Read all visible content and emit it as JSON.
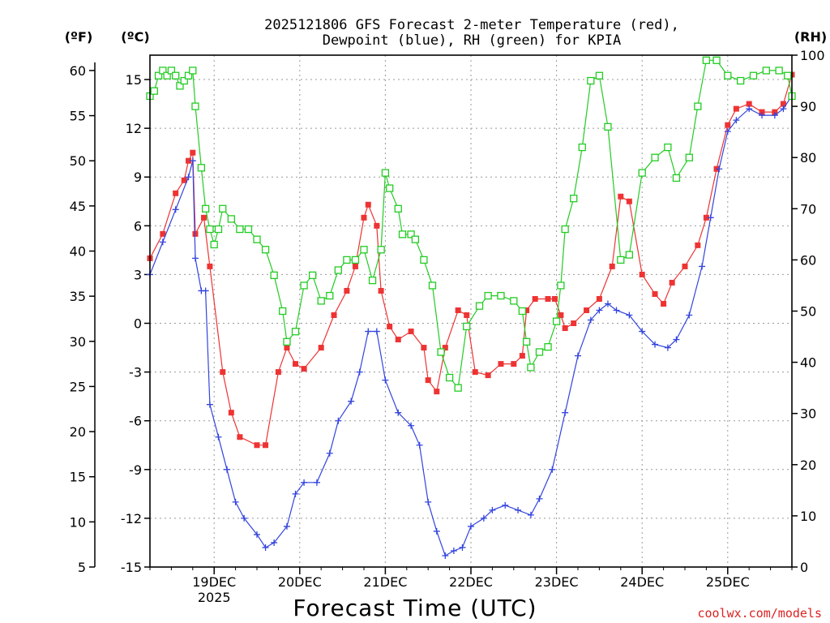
{
  "chart_data": {
    "type": "line",
    "title_line1": "2025121806 GFS Forecast 2-meter Temperature (red),",
    "title_line2": "Dewpoint (blue), RH (green) for KPIA",
    "xlabel": "Forecast Time (UTC)",
    "watermark": "coolwx.com/models",
    "unit_labels": {
      "fahrenheit": "(ºF)",
      "celsius": "(ºC)",
      "rh": "(RH)"
    },
    "x_range_days": [
      18.25,
      25.75
    ],
    "x_ticks": [
      {
        "day": 19,
        "label": "19DEC",
        "year": "2025"
      },
      {
        "day": 20,
        "label": "20DEC"
      },
      {
        "day": 21,
        "label": "21DEC"
      },
      {
        "day": 22,
        "label": "22DEC"
      },
      {
        "day": 23,
        "label": "23DEC"
      },
      {
        "day": 24,
        "label": "24DEC"
      },
      {
        "day": 25,
        "label": "25DEC"
      }
    ],
    "y_celsius": {
      "range": [
        -15,
        16.5
      ],
      "ticks": [
        "15",
        "12",
        "9",
        "6",
        "3",
        "0",
        "-3",
        "-6",
        "-9",
        "-12",
        "-15"
      ]
    },
    "y_fahrenheit": {
      "ticks": [
        "60",
        "55",
        "50",
        "45",
        "40",
        "35",
        "30",
        "25",
        "20",
        "15",
        "10",
        "5"
      ]
    },
    "y_rh": {
      "range": [
        0,
        100
      ],
      "ticks": [
        "100",
        "90",
        "80",
        "70",
        "60",
        "50",
        "40",
        "30",
        "20",
        "10",
        "0"
      ]
    },
    "series": [
      {
        "name": "Temperature",
        "units": "C",
        "color": "#ee3333",
        "marker": "square-filled",
        "points": [
          [
            18.25,
            4.0
          ],
          [
            18.4,
            5.5
          ],
          [
            18.55,
            8.0
          ],
          [
            18.65,
            8.8
          ],
          [
            18.7,
            10.0
          ],
          [
            18.75,
            10.5
          ],
          [
            18.78,
            5.5
          ],
          [
            18.88,
            6.5
          ],
          [
            18.95,
            3.5
          ],
          [
            19.1,
            -3
          ],
          [
            19.2,
            -5.5
          ],
          [
            19.3,
            -7.0
          ],
          [
            19.5,
            -7.5
          ],
          [
            19.6,
            -7.5
          ],
          [
            19.75,
            -3.0
          ],
          [
            19.85,
            -1.5
          ],
          [
            19.95,
            -2.5
          ],
          [
            20.05,
            -2.8
          ],
          [
            20.25,
            -1.5
          ],
          [
            20.4,
            0.5
          ],
          [
            20.55,
            2.0
          ],
          [
            20.65,
            3.5
          ],
          [
            20.75,
            6.5
          ],
          [
            20.8,
            7.3
          ],
          [
            20.9,
            6.0
          ],
          [
            20.95,
            2.0
          ],
          [
            21.05,
            -0.2
          ],
          [
            21.15,
            -1.0
          ],
          [
            21.3,
            -0.5
          ],
          [
            21.45,
            -1.5
          ],
          [
            21.5,
            -3.5
          ],
          [
            21.6,
            -4.2
          ],
          [
            21.7,
            -1.5
          ],
          [
            21.85,
            0.8
          ],
          [
            21.95,
            0.5
          ],
          [
            22.05,
            -3.0
          ],
          [
            22.2,
            -3.2
          ],
          [
            22.35,
            -2.5
          ],
          [
            22.5,
            -2.5
          ],
          [
            22.6,
            -2.0
          ],
          [
            22.65,
            0.8
          ],
          [
            22.75,
            1.5
          ],
          [
            22.9,
            1.5
          ],
          [
            22.98,
            1.5
          ],
          [
            23.05,
            0.5
          ],
          [
            23.1,
            -0.3
          ],
          [
            23.2,
            0.0
          ],
          [
            23.35,
            0.8
          ],
          [
            23.5,
            1.5
          ],
          [
            23.65,
            3.5
          ],
          [
            23.75,
            7.8
          ],
          [
            23.85,
            7.5
          ],
          [
            24.0,
            3.0
          ],
          [
            24.15,
            1.8
          ],
          [
            24.25,
            1.2
          ],
          [
            24.35,
            2.5
          ],
          [
            24.5,
            3.5
          ],
          [
            24.65,
            4.8
          ],
          [
            24.75,
            6.5
          ],
          [
            24.87,
            9.5
          ],
          [
            25.0,
            12.2
          ],
          [
            25.1,
            13.2
          ],
          [
            25.25,
            13.5
          ],
          [
            25.4,
            13.0
          ],
          [
            25.55,
            13.0
          ],
          [
            25.65,
            13.5
          ],
          [
            25.75,
            15.3
          ]
        ]
      },
      {
        "name": "Dewpoint",
        "units": "C",
        "color": "#3344dd",
        "marker": "plus",
        "points": [
          [
            18.25,
            3.0
          ],
          [
            18.4,
            5.0
          ],
          [
            18.55,
            7.0
          ],
          [
            18.7,
            9.0
          ],
          [
            18.75,
            10.0
          ],
          [
            18.78,
            4.0
          ],
          [
            18.85,
            2.0
          ],
          [
            18.9,
            2.0
          ],
          [
            18.95,
            -5.0
          ],
          [
            19.05,
            -7.0
          ],
          [
            19.15,
            -9.0
          ],
          [
            19.25,
            -11.0
          ],
          [
            19.35,
            -12.0
          ],
          [
            19.5,
            -13.0
          ],
          [
            19.6,
            -13.8
          ],
          [
            19.7,
            -13.5
          ],
          [
            19.85,
            -12.5
          ],
          [
            19.95,
            -10.5
          ],
          [
            20.05,
            -9.8
          ],
          [
            20.2,
            -9.8
          ],
          [
            20.35,
            -8.0
          ],
          [
            20.45,
            -6.0
          ],
          [
            20.6,
            -4.8
          ],
          [
            20.7,
            -3.0
          ],
          [
            20.8,
            -0.5
          ],
          [
            20.9,
            -0.5
          ],
          [
            21.0,
            -3.5
          ],
          [
            21.15,
            -5.5
          ],
          [
            21.3,
            -6.3
          ],
          [
            21.4,
            -7.5
          ],
          [
            21.5,
            -11.0
          ],
          [
            21.6,
            -12.8
          ],
          [
            21.7,
            -14.3
          ],
          [
            21.8,
            -14.0
          ],
          [
            21.9,
            -13.8
          ],
          [
            22.0,
            -12.5
          ],
          [
            22.15,
            -12.0
          ],
          [
            22.25,
            -11.5
          ],
          [
            22.4,
            -11.2
          ],
          [
            22.55,
            -11.5
          ],
          [
            22.7,
            -11.8
          ],
          [
            22.8,
            -10.8
          ],
          [
            22.95,
            -9.0
          ],
          [
            23.1,
            -5.5
          ],
          [
            23.25,
            -2.0
          ],
          [
            23.4,
            0.2
          ],
          [
            23.5,
            0.8
          ],
          [
            23.6,
            1.2
          ],
          [
            23.7,
            0.8
          ],
          [
            23.85,
            0.5
          ],
          [
            24.0,
            -0.5
          ],
          [
            24.15,
            -1.3
          ],
          [
            24.3,
            -1.5
          ],
          [
            24.4,
            -1.0
          ],
          [
            24.55,
            0.5
          ],
          [
            24.7,
            3.5
          ],
          [
            24.8,
            6.5
          ],
          [
            24.9,
            9.5
          ],
          [
            25.0,
            11.8
          ],
          [
            25.1,
            12.5
          ],
          [
            25.25,
            13.2
          ],
          [
            25.4,
            12.8
          ],
          [
            25.55,
            12.8
          ],
          [
            25.65,
            13.2
          ],
          [
            25.75,
            14.0
          ]
        ]
      },
      {
        "name": "Relative Humidity",
        "units": "%",
        "color": "#22cc22",
        "marker": "square-open",
        "points": [
          [
            18.25,
            92
          ],
          [
            18.3,
            93
          ],
          [
            18.35,
            96
          ],
          [
            18.4,
            97
          ],
          [
            18.45,
            96
          ],
          [
            18.5,
            97
          ],
          [
            18.55,
            96
          ],
          [
            18.6,
            94
          ],
          [
            18.65,
            95
          ],
          [
            18.7,
            96
          ],
          [
            18.75,
            97
          ],
          [
            18.78,
            90
          ],
          [
            18.85,
            78
          ],
          [
            18.9,
            70
          ],
          [
            18.95,
            66
          ],
          [
            19.0,
            63
          ],
          [
            19.05,
            66
          ],
          [
            19.1,
            70
          ],
          [
            19.2,
            68
          ],
          [
            19.3,
            66
          ],
          [
            19.4,
            66
          ],
          [
            19.5,
            64
          ],
          [
            19.6,
            62
          ],
          [
            19.7,
            57
          ],
          [
            19.8,
            50
          ],
          [
            19.85,
            44
          ],
          [
            19.95,
            46
          ],
          [
            20.05,
            55
          ],
          [
            20.15,
            57
          ],
          [
            20.25,
            52
          ],
          [
            20.35,
            53
          ],
          [
            20.45,
            58
          ],
          [
            20.55,
            60
          ],
          [
            20.65,
            60
          ],
          [
            20.75,
            62
          ],
          [
            20.85,
            56
          ],
          [
            20.95,
            62
          ],
          [
            21.0,
            77
          ],
          [
            21.05,
            74
          ],
          [
            21.15,
            70
          ],
          [
            21.2,
            65
          ],
          [
            21.3,
            65
          ],
          [
            21.35,
            64
          ],
          [
            21.45,
            60
          ],
          [
            21.55,
            55
          ],
          [
            21.65,
            42
          ],
          [
            21.75,
            37
          ],
          [
            21.85,
            35
          ],
          [
            21.95,
            47
          ],
          [
            22.1,
            51
          ],
          [
            22.2,
            53
          ],
          [
            22.35,
            53
          ],
          [
            22.5,
            52
          ],
          [
            22.6,
            50
          ],
          [
            22.65,
            44
          ],
          [
            22.7,
            39
          ],
          [
            22.8,
            42
          ],
          [
            22.9,
            43
          ],
          [
            23.0,
            48
          ],
          [
            23.05,
            55
          ],
          [
            23.1,
            66
          ],
          [
            23.2,
            72
          ],
          [
            23.3,
            82
          ],
          [
            23.4,
            95
          ],
          [
            23.5,
            96
          ],
          [
            23.6,
            86
          ],
          [
            23.75,
            60
          ],
          [
            23.85,
            61
          ],
          [
            24.0,
            77
          ],
          [
            24.15,
            80
          ],
          [
            24.3,
            82
          ],
          [
            24.4,
            76
          ],
          [
            24.55,
            80
          ],
          [
            24.65,
            90
          ],
          [
            24.75,
            99
          ],
          [
            24.87,
            99
          ],
          [
            25.0,
            96
          ],
          [
            25.15,
            95
          ],
          [
            25.3,
            96
          ],
          [
            25.45,
            97
          ],
          [
            25.6,
            97
          ],
          [
            25.7,
            96
          ],
          [
            25.75,
            92
          ]
        ]
      }
    ]
  }
}
